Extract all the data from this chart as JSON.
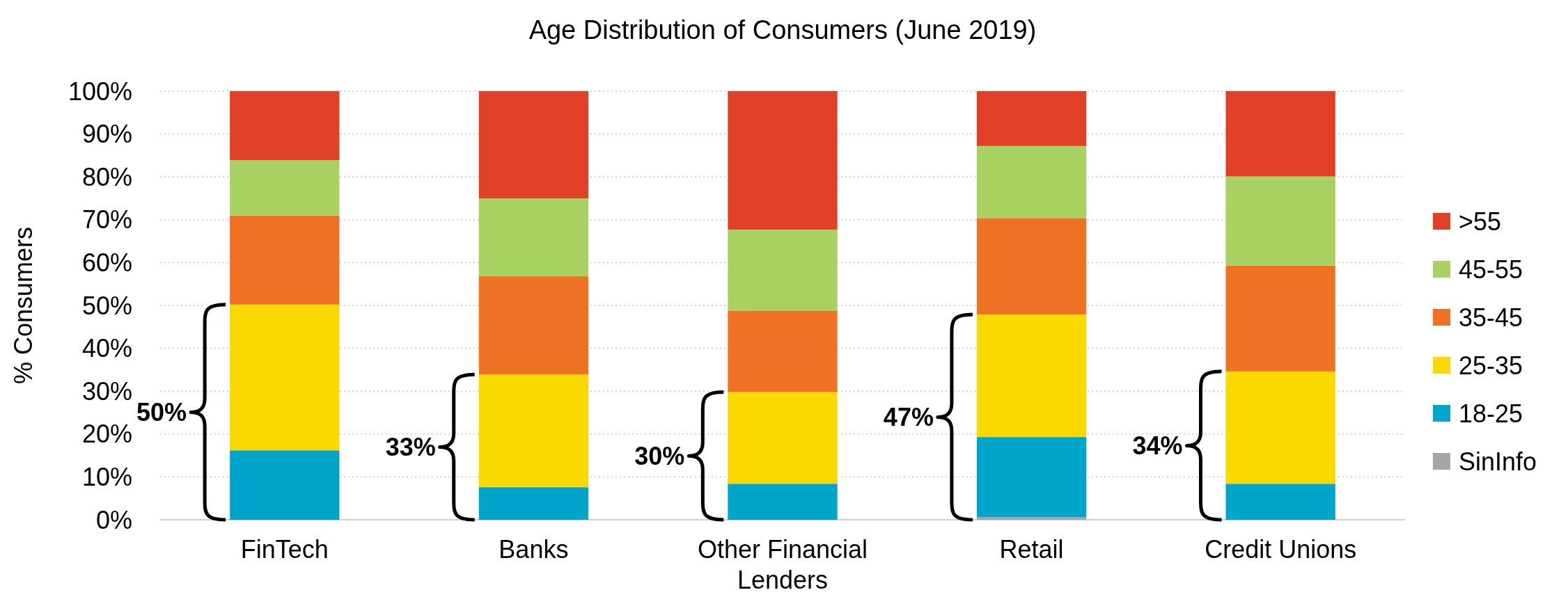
{
  "chart_data": {
    "type": "bar",
    "stacked": true,
    "title": "Age Distribution of Consumers (June 2019)",
    "ylabel": "% Consumers",
    "categories": [
      "FinTech",
      "Banks",
      "Other Financial Lenders",
      "Retail",
      "Credit Unions"
    ],
    "series": [
      {
        "name": "SinInfo",
        "color": "#a5a5a5",
        "values": [
          0,
          0,
          0,
          0.6,
          0
        ]
      },
      {
        "name": "18-25",
        "color": "#00a5c9",
        "values": [
          16.2,
          7.6,
          8.4,
          18.7,
          8.4
        ]
      },
      {
        "name": "25-35",
        "color": "#fad900",
        "values": [
          34.0,
          26.3,
          21.4,
          28.6,
          26.2
        ]
      },
      {
        "name": "35-45",
        "color": "#ef7123",
        "values": [
          20.8,
          22.9,
          18.9,
          22.5,
          24.7
        ]
      },
      {
        "name": "45-55",
        "color": "#a9d161",
        "values": [
          12.9,
          18.2,
          19.0,
          16.8,
          20.8
        ]
      },
      {
        "name": ">55",
        "color": "#e04126",
        "values": [
          16.1,
          25.0,
          32.3,
          12.8,
          19.9
        ]
      }
    ],
    "ylim": [
      0,
      100
    ],
    "yticks": [
      {
        "value": 0,
        "label": "0%"
      },
      {
        "value": 10,
        "label": "10%"
      },
      {
        "value": 20,
        "label": "20%"
      },
      {
        "value": 30,
        "label": "30%"
      },
      {
        "value": 40,
        "label": "40%"
      },
      {
        "value": 50,
        "label": "50%"
      },
      {
        "value": 60,
        "label": "60%"
      },
      {
        "value": 70,
        "label": "70%"
      },
      {
        "value": 80,
        "label": "80%"
      },
      {
        "value": 90,
        "label": "90%"
      },
      {
        "value": 100,
        "label": "100%"
      }
    ],
    "grid": "y",
    "legend": "right",
    "annotations": [
      "50%",
      "33%",
      "30%",
      "47%",
      "34%"
    ]
  }
}
